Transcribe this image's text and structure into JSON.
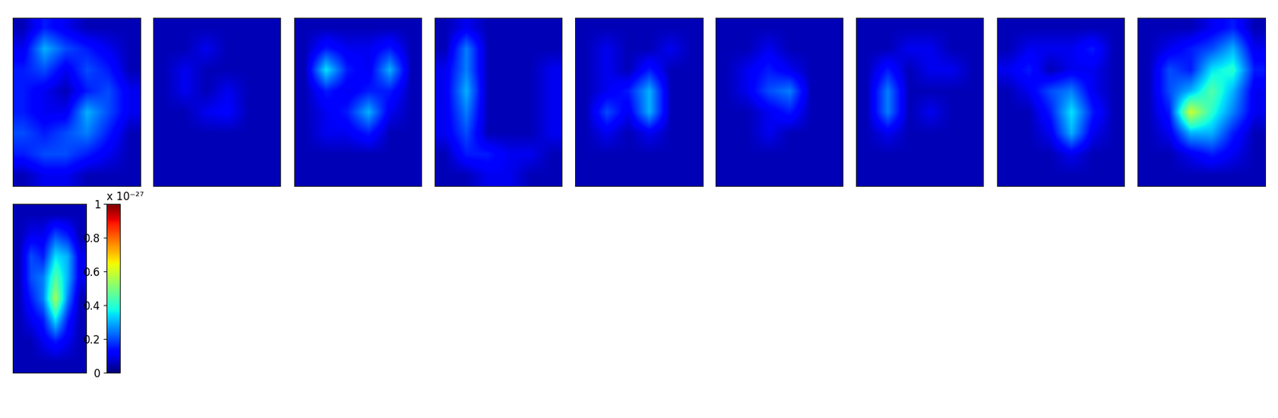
{
  "chart_data": {
    "type": "heatmap",
    "tick_labels": false,
    "panels": [
      {
        "cells": [
          [
            0.05,
            0.15,
            0.1,
            0.05,
            0.05,
            0.05
          ],
          [
            0.1,
            0.3,
            0.2,
            0.15,
            0.1,
            0.05
          ],
          [
            0.15,
            0.2,
            0.1,
            0.2,
            0.15,
            0.05
          ],
          [
            0.15,
            0.1,
            0.05,
            0.15,
            0.2,
            0.1
          ],
          [
            0.15,
            0.1,
            0.1,
            0.3,
            0.2,
            0.1
          ],
          [
            0.2,
            0.15,
            0.2,
            0.25,
            0.15,
            0.05
          ],
          [
            0.15,
            0.2,
            0.2,
            0.15,
            0.1,
            0.05
          ],
          [
            0.05,
            0.1,
            0.1,
            0.05,
            0.05,
            0.05
          ]
        ]
      },
      {
        "cells": [
          [
            0.05,
            0.05,
            0.05,
            0.05,
            0.05,
            0.05
          ],
          [
            0.05,
            0.05,
            0.1,
            0.05,
            0.05,
            0.05
          ],
          [
            0.05,
            0.1,
            0.05,
            0.05,
            0.05,
            0.05
          ],
          [
            0.05,
            0.1,
            0.05,
            0.1,
            0.05,
            0.05
          ],
          [
            0.05,
            0.05,
            0.1,
            0.12,
            0.05,
            0.05
          ],
          [
            0.05,
            0.05,
            0.05,
            0.05,
            0.05,
            0.05
          ],
          [
            0.05,
            0.05,
            0.05,
            0.05,
            0.05,
            0.05
          ],
          [
            0.05,
            0.05,
            0.05,
            0.05,
            0.05,
            0.05
          ]
        ]
      },
      {
        "cells": [
          [
            0.05,
            0.05,
            0.05,
            0.05,
            0.05,
            0.05
          ],
          [
            0.05,
            0.15,
            0.1,
            0.1,
            0.15,
            0.05
          ],
          [
            0.05,
            0.35,
            0.15,
            0.1,
            0.3,
            0.05
          ],
          [
            0.05,
            0.15,
            0.1,
            0.15,
            0.15,
            0.05
          ],
          [
            0.05,
            0.1,
            0.15,
            0.3,
            0.1,
            0.05
          ],
          [
            0.05,
            0.1,
            0.1,
            0.15,
            0.05,
            0.05
          ],
          [
            0.05,
            0.05,
            0.05,
            0.05,
            0.05,
            0.05
          ],
          [
            0.05,
            0.05,
            0.05,
            0.05,
            0.05,
            0.05
          ]
        ]
      },
      {
        "cells": [
          [
            0.05,
            0.1,
            0.05,
            0.05,
            0.05,
            0.05
          ],
          [
            0.05,
            0.25,
            0.05,
            0.05,
            0.05,
            0.05
          ],
          [
            0.1,
            0.25,
            0.05,
            0.05,
            0.05,
            0.1
          ],
          [
            0.1,
            0.3,
            0.05,
            0.05,
            0.05,
            0.1
          ],
          [
            0.1,
            0.25,
            0.05,
            0.05,
            0.05,
            0.1
          ],
          [
            0.1,
            0.2,
            0.05,
            0.05,
            0.05,
            0.1
          ],
          [
            0.05,
            0.15,
            0.15,
            0.1,
            0.1,
            0.05
          ],
          [
            0.05,
            0.05,
            0.1,
            0.1,
            0.05,
            0.05
          ]
        ]
      },
      {
        "cells": [
          [
            0.05,
            0.05,
            0.05,
            0.05,
            0.05,
            0.05
          ],
          [
            0.05,
            0.1,
            0.05,
            0.05,
            0.1,
            0.05
          ],
          [
            0.05,
            0.1,
            0.05,
            0.15,
            0.05,
            0.05
          ],
          [
            0.05,
            0.1,
            0.15,
            0.3,
            0.05,
            0.05
          ],
          [
            0.05,
            0.2,
            0.1,
            0.3,
            0.05,
            0.05
          ],
          [
            0.05,
            0.1,
            0.05,
            0.1,
            0.05,
            0.05
          ],
          [
            0.05,
            0.05,
            0.05,
            0.05,
            0.05,
            0.05
          ],
          [
            0.05,
            0.05,
            0.05,
            0.05,
            0.05,
            0.05
          ]
        ]
      },
      {
        "cells": [
          [
            0.05,
            0.05,
            0.05,
            0.05,
            0.05,
            0.05
          ],
          [
            0.05,
            0.05,
            0.1,
            0.05,
            0.05,
            0.05
          ],
          [
            0.05,
            0.1,
            0.15,
            0.1,
            0.05,
            0.05
          ],
          [
            0.05,
            0.1,
            0.2,
            0.25,
            0.05,
            0.05
          ],
          [
            0.05,
            0.05,
            0.1,
            0.15,
            0.05,
            0.05
          ],
          [
            0.05,
            0.05,
            0.1,
            0.05,
            0.05,
            0.05
          ],
          [
            0.05,
            0.05,
            0.05,
            0.05,
            0.05,
            0.05
          ],
          [
            0.05,
            0.05,
            0.05,
            0.05,
            0.05,
            0.05
          ]
        ]
      },
      {
        "cells": [
          [
            0.05,
            0.05,
            0.05,
            0.05,
            0.05,
            0.05
          ],
          [
            0.05,
            0.05,
            0.1,
            0.1,
            0.05,
            0.05
          ],
          [
            0.05,
            0.15,
            0.05,
            0.1,
            0.1,
            0.05
          ],
          [
            0.05,
            0.25,
            0.05,
            0.05,
            0.05,
            0.05
          ],
          [
            0.05,
            0.25,
            0.05,
            0.1,
            0.05,
            0.05
          ],
          [
            0.05,
            0.1,
            0.05,
            0.05,
            0.05,
            0.05
          ],
          [
            0.05,
            0.05,
            0.05,
            0.05,
            0.05,
            0.05
          ],
          [
            0.05,
            0.05,
            0.05,
            0.05,
            0.05,
            0.05
          ]
        ]
      },
      {
        "cells": [
          [
            0.05,
            0.05,
            0.05,
            0.05,
            0.05,
            0.05
          ],
          [
            0.05,
            0.1,
            0.1,
            0.1,
            0.15,
            0.05
          ],
          [
            0.1,
            0.15,
            0.05,
            0.1,
            0.1,
            0.05
          ],
          [
            0.05,
            0.1,
            0.2,
            0.25,
            0.1,
            0.05
          ],
          [
            0.05,
            0.05,
            0.15,
            0.35,
            0.15,
            0.05
          ],
          [
            0.05,
            0.05,
            0.1,
            0.3,
            0.1,
            0.05
          ],
          [
            0.05,
            0.05,
            0.05,
            0.1,
            0.05,
            0.05
          ],
          [
            0.05,
            0.05,
            0.05,
            0.05,
            0.05,
            0.05
          ]
        ]
      },
      {
        "cells": [
          [
            0.05,
            0.05,
            0.05,
            0.1,
            0.15,
            0.05
          ],
          [
            0.05,
            0.1,
            0.15,
            0.2,
            0.3,
            0.1
          ],
          [
            0.05,
            0.2,
            0.15,
            0.35,
            0.4,
            0.15
          ],
          [
            0.05,
            0.2,
            0.3,
            0.45,
            0.3,
            0.1
          ],
          [
            0.05,
            0.15,
            0.6,
            0.4,
            0.25,
            0.1
          ],
          [
            0.05,
            0.1,
            0.3,
            0.3,
            0.15,
            0.05
          ],
          [
            0.05,
            0.05,
            0.1,
            0.15,
            0.1,
            0.05
          ],
          [
            0.05,
            0.05,
            0.05,
            0.05,
            0.05,
            0.05
          ]
        ]
      },
      {
        "cells": [
          [
            0.05,
            0.05,
            0.05,
            0.05,
            0.05,
            0.05
          ],
          [
            0.05,
            0.1,
            0.1,
            0.2,
            0.15,
            0.05
          ],
          [
            0.05,
            0.2,
            0.15,
            0.35,
            0.3,
            0.1
          ],
          [
            0.05,
            0.2,
            0.25,
            0.45,
            0.3,
            0.1
          ],
          [
            0.05,
            0.15,
            0.25,
            0.55,
            0.25,
            0.05
          ],
          [
            0.05,
            0.1,
            0.15,
            0.35,
            0.15,
            0.05
          ],
          [
            0.05,
            0.05,
            0.1,
            0.15,
            0.1,
            0.05
          ],
          [
            0.05,
            0.05,
            0.05,
            0.05,
            0.05,
            0.05
          ]
        ]
      }
    ],
    "colorbar": {
      "range": [
        0,
        1
      ],
      "ticks": [
        0,
        0.2,
        0.4,
        0.6,
        0.8,
        1
      ],
      "label": "x 10⁻²⁷"
    }
  }
}
